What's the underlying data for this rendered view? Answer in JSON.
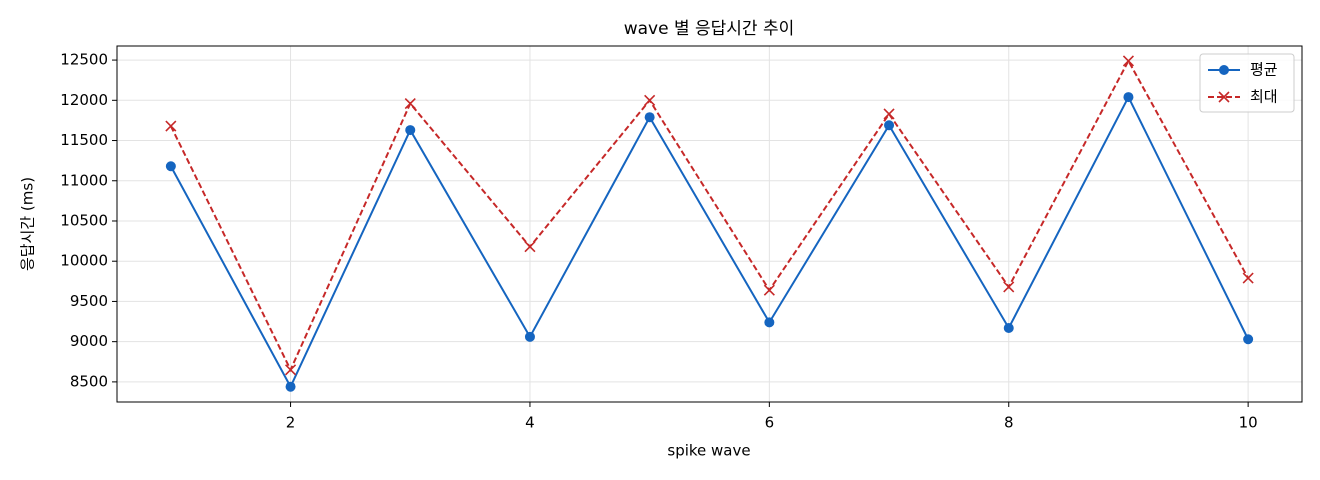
{
  "chart_data": {
    "type": "line",
    "title": "wave 별 응답시간 추이",
    "xlabel": "spike wave",
    "ylabel": "응답시간 (ms)",
    "x": [
      1,
      2,
      3,
      4,
      5,
      6,
      7,
      8,
      9,
      10
    ],
    "series": [
      {
        "name": "평균",
        "color": "#1565c0",
        "marker": "o",
        "linestyle": "solid",
        "values": [
          11180,
          8440,
          11630,
          9060,
          11790,
          9240,
          11690,
          9170,
          12040,
          9030
        ]
      },
      {
        "name": "최대",
        "color": "#c62828",
        "marker": "x",
        "linestyle": "dashed",
        "values": [
          11680,
          8650,
          11960,
          10180,
          12000,
          9640,
          11830,
          9680,
          12490,
          9790
        ]
      }
    ],
    "xlim": [
      0.55,
      10.45
    ],
    "xticks": [
      2,
      4,
      6,
      8,
      10
    ],
    "ylim": [
      8250,
      12675
    ],
    "yticks": [
      8500,
      9000,
      9500,
      10000,
      10500,
      11000,
      11500,
      12000,
      12500
    ],
    "grid": true,
    "legend": "upper right"
  }
}
